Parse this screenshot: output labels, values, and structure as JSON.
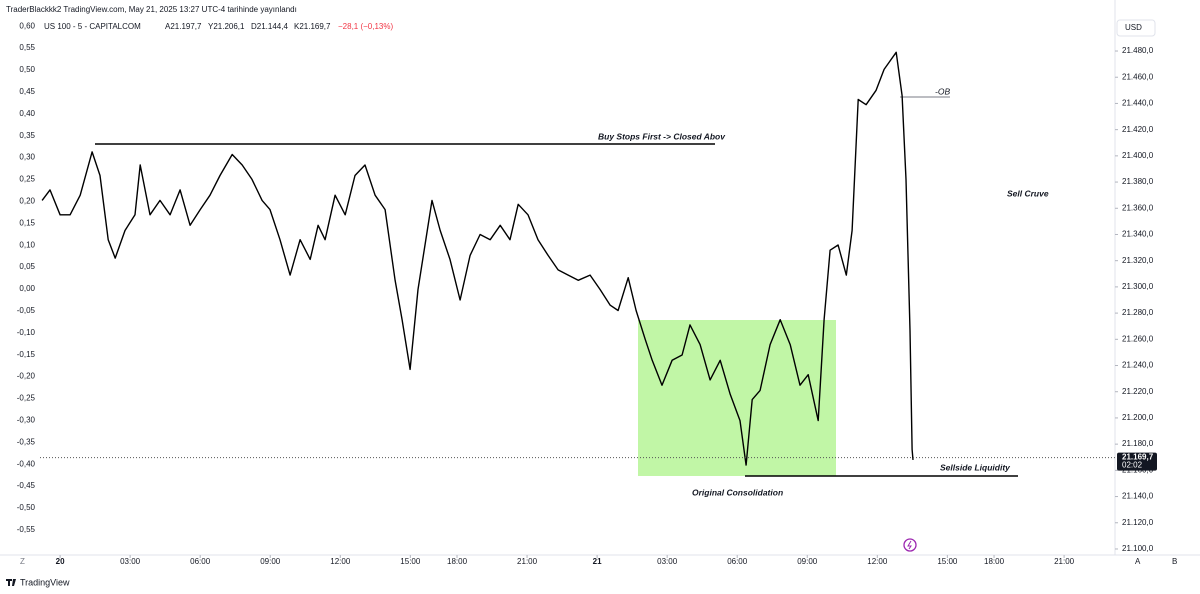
{
  "header": {
    "publisher": "TraderBlackkk2 TradingView.com, May 21, 2025 13:27 UTC-4 tarihinde yayınlandı",
    "symbol": "US 100 - 5 - CAPITALCOM",
    "open": "A21.197,7",
    "high": "Y21.206,1",
    "low": "D21.144,4",
    "close": "K21.169,7",
    "change": "−28,1 (−0,13%)",
    "currency": "USD",
    "brand": "TradingView",
    "footer_left": "Z",
    "footer_auto": "A",
    "footer_log": "B"
  },
  "chart_data": {
    "type": "line",
    "color": "#000000",
    "grid": false,
    "x": [
      -0.77,
      -0.43,
      0,
      0.43,
      0.86,
      1.37,
      1.71,
      2.06,
      2.36,
      2.78,
      3.21,
      3.43,
      3.85,
      4.28,
      4.71,
      5.14,
      5.57,
      6.0,
      6.42,
      6.85,
      7.37,
      7.8,
      8.22,
      8.65,
      8.99,
      9.42,
      9.85,
      10.28,
      10.71,
      11.05,
      11.35,
      11.78,
      12.21,
      12.63,
      13.06,
      13.49,
      13.92,
      14.35,
      14.65,
      14.99,
      15.33,
      15.63,
      15.93,
      16.28,
      16.7,
      17.13,
      17.56,
      17.99,
      18.42,
      18.85,
      19.27,
      19.62,
      20.04,
      20.47,
      20.9,
      21.33,
      21.76,
      22.19,
      22.7,
      23.13,
      23.56,
      23.9,
      24.33,
      24.67,
      25.06,
      25.36,
      25.78,
      26.21,
      26.64,
      26.98,
      27.41,
      27.84,
      28.27,
      28.7,
      29.12,
      29.38,
      29.64,
      29.98,
      30.41,
      30.84,
      31.27,
      31.69,
      32.04,
      32.47,
      32.72,
      32.98,
      33.32,
      33.67,
      33.92,
      34.18,
      34.52,
      34.95,
      35.29,
      35.81,
      36.06,
      36.23,
      36.4,
      36.49,
      36.53
    ],
    "values": [
      21366,
      21374,
      21355,
      21355,
      21370,
      21403,
      21385,
      21336,
      21322,
      21343,
      21355,
      21393,
      21355,
      21366,
      21355,
      21374,
      21347,
      21359,
      21370,
      21385,
      21401,
      21393,
      21382,
      21366,
      21359,
      21336,
      21309,
      21336,
      21321,
      21347,
      21336,
      21370,
      21355,
      21385,
      21393,
      21370,
      21359,
      21305,
      21275,
      21237,
      21298,
      21332,
      21366,
      21343,
      21321,
      21290,
      21324,
      21340,
      21336,
      21347,
      21336,
      21363,
      21355,
      21336,
      21324,
      21313,
      21309,
      21305,
      21309,
      21298,
      21286,
      21282,
      21307,
      21282,
      21260,
      21244,
      21225,
      21244,
      21248,
      21271,
      21256,
      21229,
      21244,
      21218,
      21198,
      21164,
      21214,
      21221,
      21256,
      21275,
      21256,
      21225,
      21233,
      21198,
      21275,
      21328,
      21332,
      21309,
      21343,
      21443,
      21439,
      21450,
      21466,
      21479,
      21446,
      21382,
      21267,
      21176,
      21168
    ],
    "xlim": [
      -0.86,
      45.18
    ],
    "xticks": [
      {
        "value": 0,
        "label": "20"
      },
      {
        "value": 3,
        "label": "03:00"
      },
      {
        "value": 6,
        "label": "06:00"
      },
      {
        "value": 9,
        "label": "09:00"
      },
      {
        "value": 12,
        "label": "12:00"
      },
      {
        "value": 15,
        "label": "15:00"
      },
      {
        "value": 17,
        "label": "18:00"
      },
      {
        "value": 20,
        "label": "21:00"
      },
      {
        "value": 23,
        "label": "21"
      },
      {
        "value": 26,
        "label": "03:00"
      },
      {
        "value": 29,
        "label": "06:00"
      },
      {
        "value": 32,
        "label": "09:00"
      },
      {
        "value": 35,
        "label": "12:00"
      },
      {
        "value": 38,
        "label": "15:00"
      },
      {
        "value": 40,
        "label": "18:00"
      },
      {
        "value": 43,
        "label": "21:00"
      }
    ],
    "ylim": [
      21095.4,
      21505.2
    ],
    "yticks": [
      {
        "value": 21100,
        "label": "21.100,0"
      },
      {
        "value": 21120,
        "label": "21.120,0"
      },
      {
        "value": 21140,
        "label": "21.140,0"
      },
      {
        "value": 21160,
        "label": "21.160,0"
      },
      {
        "value": 21180,
        "label": "21.180,0"
      },
      {
        "value": 21200,
        "label": "21.200,0"
      },
      {
        "value": 21220,
        "label": "21.220,0"
      },
      {
        "value": 21240,
        "label": "21.240,0"
      },
      {
        "value": 21260,
        "label": "21.260,0"
      },
      {
        "value": 21280,
        "label": "21.280,0"
      },
      {
        "value": 21300,
        "label": "21.300,0"
      },
      {
        "value": 21320,
        "label": "21.320,0"
      },
      {
        "value": 21340,
        "label": "21.340,0"
      },
      {
        "value": 21360,
        "label": "21.360,0"
      },
      {
        "value": 21380,
        "label": "21.380,0"
      },
      {
        "value": 21400,
        "label": "21.400,0"
      },
      {
        "value": 21420,
        "label": "21.420,0"
      },
      {
        "value": 21440,
        "label": "21.440,0"
      },
      {
        "value": 21460,
        "label": "21.460,0"
      },
      {
        "value": 21480,
        "label": "21.480,0"
      }
    ],
    "y2lim": [
      -0.6073,
      0.6187
    ],
    "y2ticks": [
      {
        "value": 0.6,
        "label": "0,60"
      },
      {
        "value": 0.55,
        "label": "0,55"
      },
      {
        "value": 0.5,
        "label": "0,50"
      },
      {
        "value": 0.45,
        "label": "0,45"
      },
      {
        "value": 0.4,
        "label": "0,40"
      },
      {
        "value": 0.35,
        "label": "0,35"
      },
      {
        "value": 0.3,
        "label": "0,30"
      },
      {
        "value": 0.25,
        "label": "0,25"
      },
      {
        "value": 0.2,
        "label": "0,20"
      },
      {
        "value": 0.15,
        "label": "0,15"
      },
      {
        "value": 0.1,
        "label": "0,10"
      },
      {
        "value": 0.05,
        "label": "0,05"
      },
      {
        "value": 0,
        "label": "0,00"
      },
      {
        "value": -0.05,
        "label": "-0,05"
      },
      {
        "value": -0.1,
        "label": "-0,10"
      },
      {
        "value": -0.15,
        "label": "-0,15"
      },
      {
        "value": -0.2,
        "label": "-0,20"
      },
      {
        "value": -0.25,
        "label": "-0,25"
      },
      {
        "value": -0.3,
        "label": "-0,30"
      },
      {
        "value": -0.35,
        "label": "-0,35"
      },
      {
        "value": -0.4,
        "label": "-0,40"
      },
      {
        "value": -0.45,
        "label": "-0,45"
      },
      {
        "value": -0.5,
        "label": "-0,50"
      },
      {
        "value": -0.55,
        "label": "-0,55"
      }
    ],
    "last_price": {
      "value": 21169.7,
      "label": "21.169,7"
    },
    "countdown": "02:02",
    "annotations": [
      "Buy Stops First -> Closed Abov",
      "-OB",
      "Sell Cruve",
      "Sellside Liquidity",
      "Original Consolidation"
    ]
  }
}
